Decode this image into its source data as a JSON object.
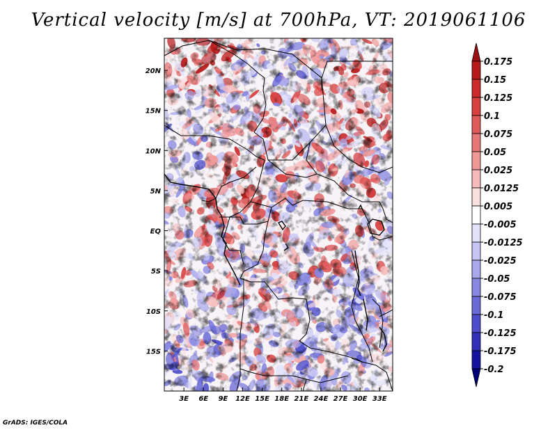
{
  "title": "Vertical velocity [m/s] at 700hPa, VT: 2019061106",
  "credit": "GrADS: IGES/COLA",
  "map": {
    "lon_ticks": [
      "3E",
      "6E",
      "9E",
      "12E",
      "15E",
      "18E",
      "21E",
      "24E",
      "27E",
      "30E",
      "33E"
    ],
    "lat_ticks": [
      "20N",
      "15N",
      "10N",
      "5N",
      "EQ",
      "5S",
      "10S",
      "15S"
    ],
    "lon_range": [
      0,
      35
    ],
    "lat_range": [
      -20,
      24
    ]
  },
  "colorbar": {
    "labels": [
      "0.175",
      "0.15",
      "0.125",
      "0.1",
      "0.075",
      "0.05",
      "0.025",
      "0.0125",
      "0.005",
      "-0.005",
      "-0.0125",
      "-0.025",
      "-0.05",
      "-0.075",
      "-0.1",
      "-0.125",
      "-0.175",
      "-0.2"
    ],
    "colors": [
      "#9b1010",
      "#b81a1a",
      "#cc2a2a",
      "#d94040",
      "#e05a5a",
      "#e87878",
      "#f09898",
      "#f6bcbc",
      "#fbe0e0",
      "#ffffff",
      "#e2e2fb",
      "#c6c6f4",
      "#a8a8ec",
      "#8888e2",
      "#6a6ad8",
      "#4c4ccc",
      "#3030b8",
      "#1414a0",
      "#00007a"
    ]
  }
}
